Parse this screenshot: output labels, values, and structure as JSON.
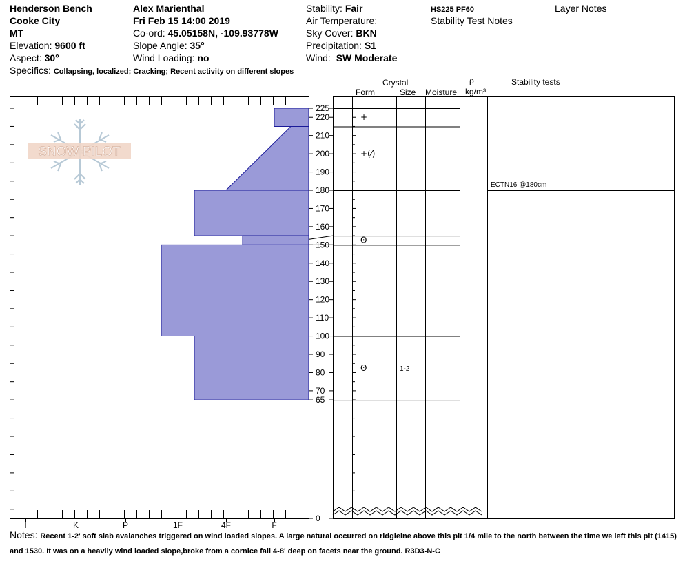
{
  "header": {
    "location": "Henderson Bench",
    "city": "Cooke City",
    "state": "MT",
    "elevation_label": "Elevation:",
    "elevation": "9600 ft",
    "aspect_label": "Aspect:",
    "aspect": "30°",
    "observer": "Alex Marienthal",
    "datetime": "Fri Feb 15 14:00 2019",
    "coord_label": "Co-ord:",
    "coord": "45.05158N, -109.93778W",
    "slope_label": "Slope Angle:",
    "slope": "35°",
    "wind_loading_label": "Wind Loading:",
    "wind_loading": "no",
    "stability_label": "Stability:",
    "stability": "Fair",
    "air_temp_label": "Air Temperature:",
    "sky_label": "Sky Cover:",
    "sky": "BKN",
    "precip_label": "Precipitation:",
    "precip": "S1",
    "wind_label": "Wind:",
    "wind": "SW Moderate",
    "hs_pf": "HS225  PF60",
    "stability_test_notes": "Stability Test Notes",
    "layer_notes": "Layer Notes",
    "specifics_label": "Specifics:",
    "specifics": "Collapsing, localized; Cracking; Recent activity on different slopes"
  },
  "logo_text": "SNOW PILOT",
  "columns": {
    "crystal": "Crystal",
    "form": "Form",
    "size": "Size",
    "moisture": "Moisture",
    "rho": "ρ",
    "density_unit": "kg/m³",
    "stability_tests": "Stability tests"
  },
  "notes_label": "Notes:",
  "notes_text": "Recent 1-2' soft slab avalanches triggered on wind loaded slopes. A large natural occurred on ridgleine above this pit 1/4 mile to the north between the time we left this pit (1415) and 1530. It was on a heavily wind loaded slope,broke from a cornice fall 4-8' deep on facets near the ground. R3D3-N-C",
  "chart_data": {
    "type": "bar",
    "y_axis": {
      "ylim": [
        0,
        225
      ],
      "ticks": [
        0,
        65,
        70,
        80,
        90,
        100,
        110,
        120,
        130,
        140,
        150,
        160,
        170,
        180,
        190,
        200,
        210,
        220,
        225
      ]
    },
    "x_axis": {
      "categories": [
        "I",
        "K",
        "P",
        "1F",
        "4F",
        "F"
      ]
    },
    "fill_color": "#9a9ad8",
    "edge_color": "#1a1a99",
    "hardness_layers": [
      {
        "top": 225,
        "bottom": 215,
        "hardness_top": "F",
        "hardness_bottom": "F"
      },
      {
        "top": 215,
        "bottom": 180,
        "hardness_top": "F+",
        "hardness_bottom": "4F"
      },
      {
        "top": 180,
        "bottom": 155,
        "hardness_top": "1F+",
        "hardness_bottom": "1F+"
      },
      {
        "top": 155,
        "bottom": 150,
        "hardness_top": "4F+",
        "hardness_bottom": "4F+"
      },
      {
        "top": 150,
        "bottom": 100,
        "hardness_top": "1F-",
        "hardness_bottom": "1F-"
      },
      {
        "top": 100,
        "bottom": 65,
        "hardness_top": "1F+",
        "hardness_bottom": "1F+"
      }
    ],
    "layer_boundaries": [
      225,
      215,
      180,
      155,
      150,
      100,
      65
    ],
    "crystal_forms": [
      {
        "depth": 220,
        "form": "+"
      },
      {
        "depth": 200,
        "form": "+(⁄)"
      },
      {
        "depth": 152.5,
        "form": "ʘ"
      },
      {
        "depth": 82.5,
        "form": "ʘ",
        "size": "1-2"
      }
    ],
    "stability_tests": [
      {
        "depth": 180,
        "label": "ECTN16 @180cm"
      }
    ]
  }
}
